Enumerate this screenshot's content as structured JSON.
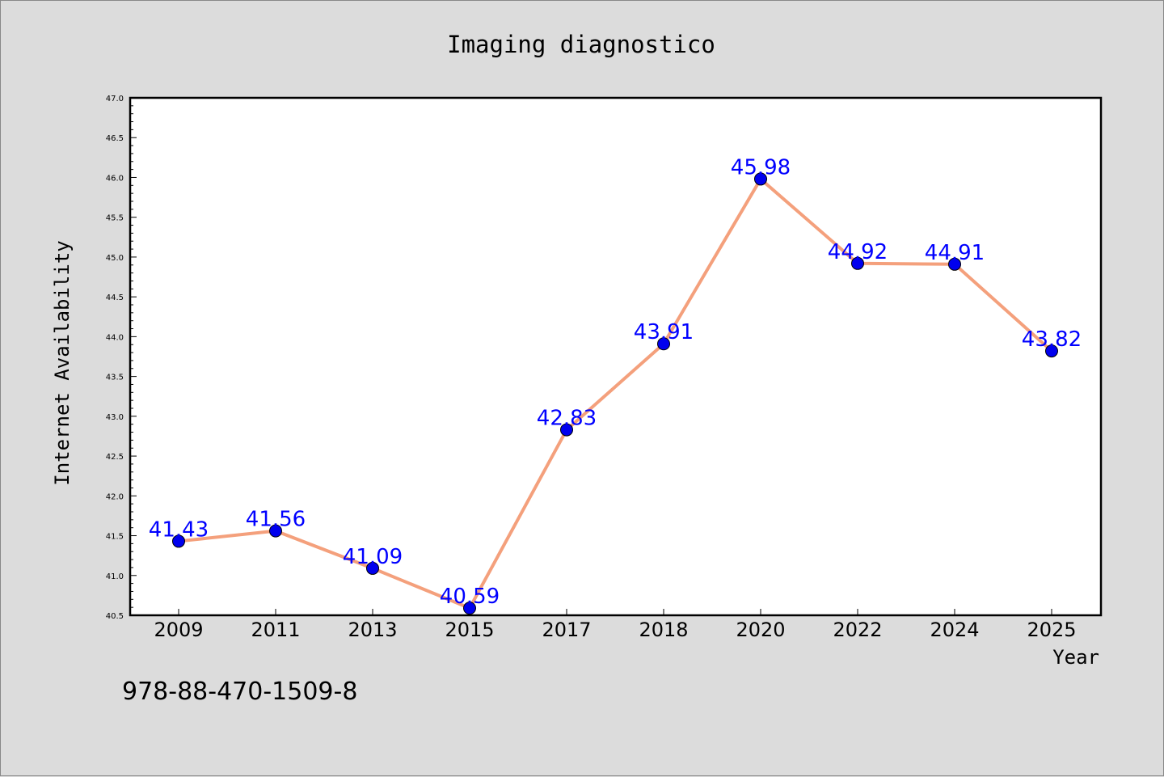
{
  "chart_data": {
    "type": "line",
    "title": "Imaging diagnostico",
    "xlabel": "Year",
    "ylabel": "Internet Availability",
    "categories": [
      "2009",
      "2011",
      "2013",
      "2015",
      "2017",
      "2018",
      "2020",
      "2022",
      "2024",
      "2025"
    ],
    "series": [
      {
        "values": [
          41.43,
          41.56,
          41.09,
          40.59,
          42.83,
          43.91,
          45.98,
          44.92,
          44.91,
          43.82
        ],
        "labels": [
          "41.43",
          "41.56",
          "41.09",
          "40.59",
          "42.83",
          "43.91",
          "45.98",
          "44.92",
          "44.91",
          "43.82"
        ],
        "line_color": "#f4a07c",
        "marker_color": "#0000ee"
      }
    ],
    "ylim": [
      40.5,
      47.0
    ],
    "yticks": [
      "40.5",
      "41.0",
      "41.5",
      "42.0",
      "42.5",
      "43.0",
      "43.5",
      "44.0",
      "44.5",
      "45.0",
      "45.5",
      "46.0",
      "46.5",
      "47.0"
    ],
    "grid": false,
    "legend": "none"
  },
  "annotation": "978-88-470-1509-8"
}
